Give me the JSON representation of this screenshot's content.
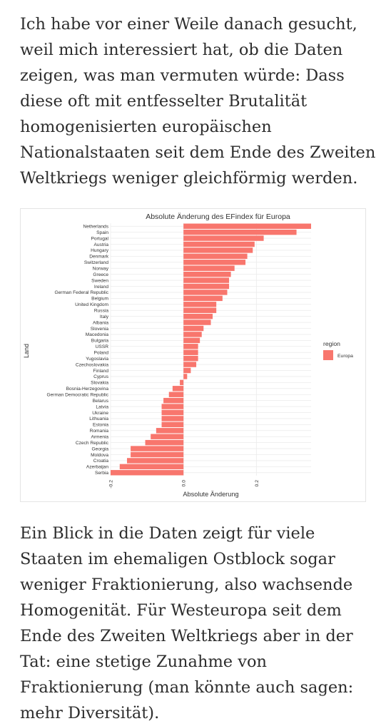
{
  "article": {
    "para1": "Ich habe vor einer Weile danach gesucht, weil mich interessiert hat, ob die Daten zeigen, was man vermuten würde: Dass diese oft mit entfesselter Brutalität homogenisierten europäischen Nationalstaaten seit dem Ende des Zweiten Weltkriegs weniger gleichförmig werden.",
    "para2": "Ein Blick in die Daten zeigt für viele Staaten im ehemaligen Ostblock sogar weniger Fraktionierung, also wachsende Homogenität. Für Westeuropa seit dem Ende des Zweiten Weltkriegs aber in der Tat: eine stetige Zunahme von Fraktionierung (man könnte auch sagen: mehr Diversität)."
  },
  "chart_data": {
    "type": "bar",
    "orientation": "horizontal",
    "title": "Absolute Änderung des EFindex für Europa",
    "xlabel": "Absolute Änderung",
    "ylabel": "Land",
    "xlim": [
      -0.2,
      0.35
    ],
    "xticks": [
      -0.2,
      0.0,
      0.2
    ],
    "xtick_labels": [
      "-0.2",
      "0.0",
      "0.2"
    ],
    "grid": true,
    "legend": {
      "title": "region",
      "position": "right",
      "entries": [
        {
          "label": "Europa",
          "color": "#F8766D"
        }
      ]
    },
    "bar_color": "#F8766D",
    "categories": [
      "Netherlands",
      "Spain",
      "Portugal",
      "Austria",
      "Hungary",
      "Denmark",
      "Switzerland",
      "Norway",
      "Greece",
      "Sweden",
      "Ireland",
      "German Federal Republic",
      "Belgium",
      "United Kingdom",
      "Russia",
      "Italy",
      "Albania",
      "Slovenia",
      "Macedonia",
      "Bulgaria",
      "USSR",
      "Poland",
      "Yugoslavia",
      "Czechoslovakia",
      "Finland",
      "Cyprus",
      "Slovakia",
      "Bosnia-Herzegovina",
      "German Democratic Republic",
      "Belarus",
      "Latvia",
      "Ukraine",
      "Lithuania",
      "Estonia",
      "Romania",
      "Armenia",
      "Czech Republic",
      "Georgia",
      "Moldova",
      "Croatia",
      "Azerbaijan",
      "Serbia"
    ],
    "values": [
      0.35,
      0.31,
      0.22,
      0.195,
      0.19,
      0.175,
      0.17,
      0.14,
      0.13,
      0.125,
      0.125,
      0.12,
      0.107,
      0.09,
      0.09,
      0.08,
      0.075,
      0.055,
      0.05,
      0.045,
      0.04,
      0.04,
      0.04,
      0.035,
      0.02,
      0.01,
      -0.01,
      -0.03,
      -0.04,
      -0.055,
      -0.06,
      -0.06,
      -0.06,
      -0.06,
      -0.075,
      -0.09,
      -0.105,
      -0.145,
      -0.145,
      -0.155,
      -0.175,
      -0.2
    ]
  }
}
